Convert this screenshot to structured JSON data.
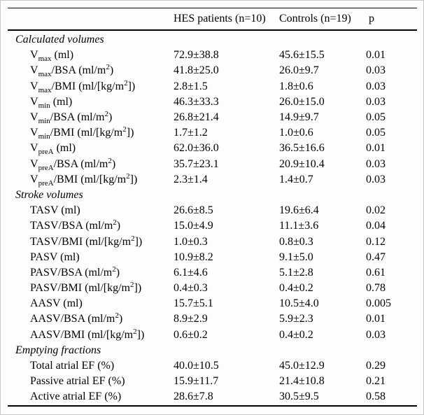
{
  "table": {
    "columns": [
      "",
      "HES patients (n=10)",
      "Controls (n=19)",
      "p"
    ],
    "sections": [
      {
        "title": "Calculated volumes",
        "rows": [
          {
            "label": [
              [
                "t",
                "V"
              ],
              [
                "sub",
                "max"
              ],
              [
                "t",
                " (ml)"
              ]
            ],
            "values": [
              "72.9±38.8",
              "45.6±15.5",
              "0.01"
            ]
          },
          {
            "label": [
              [
                "t",
                "V"
              ],
              [
                "sub",
                "max"
              ],
              [
                "t",
                "/BSA (ml/m"
              ],
              [
                "sup",
                "2"
              ],
              [
                "t",
                ")"
              ]
            ],
            "values": [
              "41.8±25.0",
              "26.0±9.7",
              "0.03"
            ]
          },
          {
            "label": [
              [
                "t",
                "V"
              ],
              [
                "sub",
                "max"
              ],
              [
                "t",
                "/BMI (ml/[kg/m"
              ],
              [
                "sup",
                "2"
              ],
              [
                "t",
                "])"
              ]
            ],
            "values": [
              "2.8±1.5",
              "1.8±0.6",
              "0.03"
            ]
          },
          {
            "label": [
              [
                "t",
                "V"
              ],
              [
                "sub",
                "min"
              ],
              [
                "t",
                " (ml)"
              ]
            ],
            "values": [
              "46.3±33.3",
              "26.0±15.0",
              "0.03"
            ]
          },
          {
            "label": [
              [
                "t",
                "V"
              ],
              [
                "sub",
                "min"
              ],
              [
                "t",
                "/BSA (ml/m"
              ],
              [
                "sup",
                "2"
              ],
              [
                "t",
                ")"
              ]
            ],
            "values": [
              "26.8±21.4",
              "14.9±9.7",
              "0.05"
            ]
          },
          {
            "label": [
              [
                "t",
                "V"
              ],
              [
                "sub",
                "min"
              ],
              [
                "t",
                "/BMI (ml/[kg/m"
              ],
              [
                "sup",
                "2"
              ],
              [
                "t",
                "])"
              ]
            ],
            "values": [
              "1.7±1.2",
              "1.0±0.6",
              "0.05"
            ]
          },
          {
            "label": [
              [
                "t",
                "V"
              ],
              [
                "sub",
                "preA"
              ],
              [
                "t",
                " (ml)"
              ]
            ],
            "values": [
              "62.0±36.0",
              "36.5±16.6",
              "0.01"
            ]
          },
          {
            "label": [
              [
                "t",
                "V"
              ],
              [
                "sub",
                "preA"
              ],
              [
                "t",
                "/BSA (ml/m"
              ],
              [
                "sup",
                "2"
              ],
              [
                "t",
                ")"
              ]
            ],
            "values": [
              "35.7±23.1",
              "20.9±10.4",
              "0.03"
            ]
          },
          {
            "label": [
              [
                "t",
                "V"
              ],
              [
                "sub",
                "preA"
              ],
              [
                "t",
                "/BMI (ml/[kg/m"
              ],
              [
                "sup",
                "2"
              ],
              [
                "t",
                "])"
              ]
            ],
            "values": [
              "2.3±1.4",
              "1.4±0.7",
              "0.03"
            ]
          }
        ]
      },
      {
        "title": "Stroke volumes",
        "rows": [
          {
            "label": [
              [
                "t",
                "TASV (ml)"
              ]
            ],
            "values": [
              "26.6±8.5",
              "19.6±6.4",
              "0.02"
            ]
          },
          {
            "label": [
              [
                "t",
                "TASV/BSA (ml/m"
              ],
              [
                "sup",
                "2"
              ],
              [
                "t",
                ")"
              ]
            ],
            "values": [
              "15.0±4.9",
              "11.1±3.6",
              "0.04"
            ]
          },
          {
            "label": [
              [
                "t",
                "TASV/BMI (ml/[kg/m"
              ],
              [
                "sup",
                "2"
              ],
              [
                "t",
                "])"
              ]
            ],
            "values": [
              "1.0±0.3",
              "0.8±0.3",
              "0.12"
            ]
          },
          {
            "label": [
              [
                "t",
                "PASV (ml)"
              ]
            ],
            "values": [
              "10.9±8.2",
              "9.1±5.0",
              "0.47"
            ]
          },
          {
            "label": [
              [
                "t",
                "PASV/BSA (ml/m"
              ],
              [
                "sup",
                "2"
              ],
              [
                "t",
                ")"
              ]
            ],
            "values": [
              "6.1±4.6",
              "5.1±2.8",
              "0.61"
            ]
          },
          {
            "label": [
              [
                "t",
                "PASV/BMI (ml/[kg/m"
              ],
              [
                "sup",
                "2"
              ],
              [
                "t",
                "])"
              ]
            ],
            "values": [
              "0.4±0.3",
              "0.4±0.2",
              "0.78"
            ]
          },
          {
            "label": [
              [
                "t",
                "AASV (ml)"
              ]
            ],
            "values": [
              "15.7±5.1",
              "10.5±4.0",
              "0.005"
            ]
          },
          {
            "label": [
              [
                "t",
                "AASV/BSA (ml/m"
              ],
              [
                "sup",
                "2"
              ],
              [
                "t",
                ")"
              ]
            ],
            "values": [
              "8.9±2.9",
              "5.9±2.3",
              "0.01"
            ]
          },
          {
            "label": [
              [
                "t",
                "AASV/BMI (ml/[kg/m"
              ],
              [
                "sup",
                "2"
              ],
              [
                "t",
                "])"
              ]
            ],
            "values": [
              "0.6±0.2",
              "0.4±0.2",
              "0.03"
            ]
          }
        ]
      },
      {
        "title": "Emptying fractions",
        "rows": [
          {
            "label": [
              [
                "t",
                "Total atrial EF (%)"
              ]
            ],
            "values": [
              "40.0±10.5",
              "45.0±12.9",
              "0.29"
            ]
          },
          {
            "label": [
              [
                "t",
                "Passive atrial EF (%)"
              ]
            ],
            "values": [
              "15.9±11.7",
              "21.4±10.8",
              "0.21"
            ]
          },
          {
            "label": [
              [
                "t",
                "Active atrial EF (%)"
              ]
            ],
            "values": [
              "28.6±7.8",
              "30.5±9.5",
              "0.58"
            ]
          }
        ]
      }
    ]
  }
}
